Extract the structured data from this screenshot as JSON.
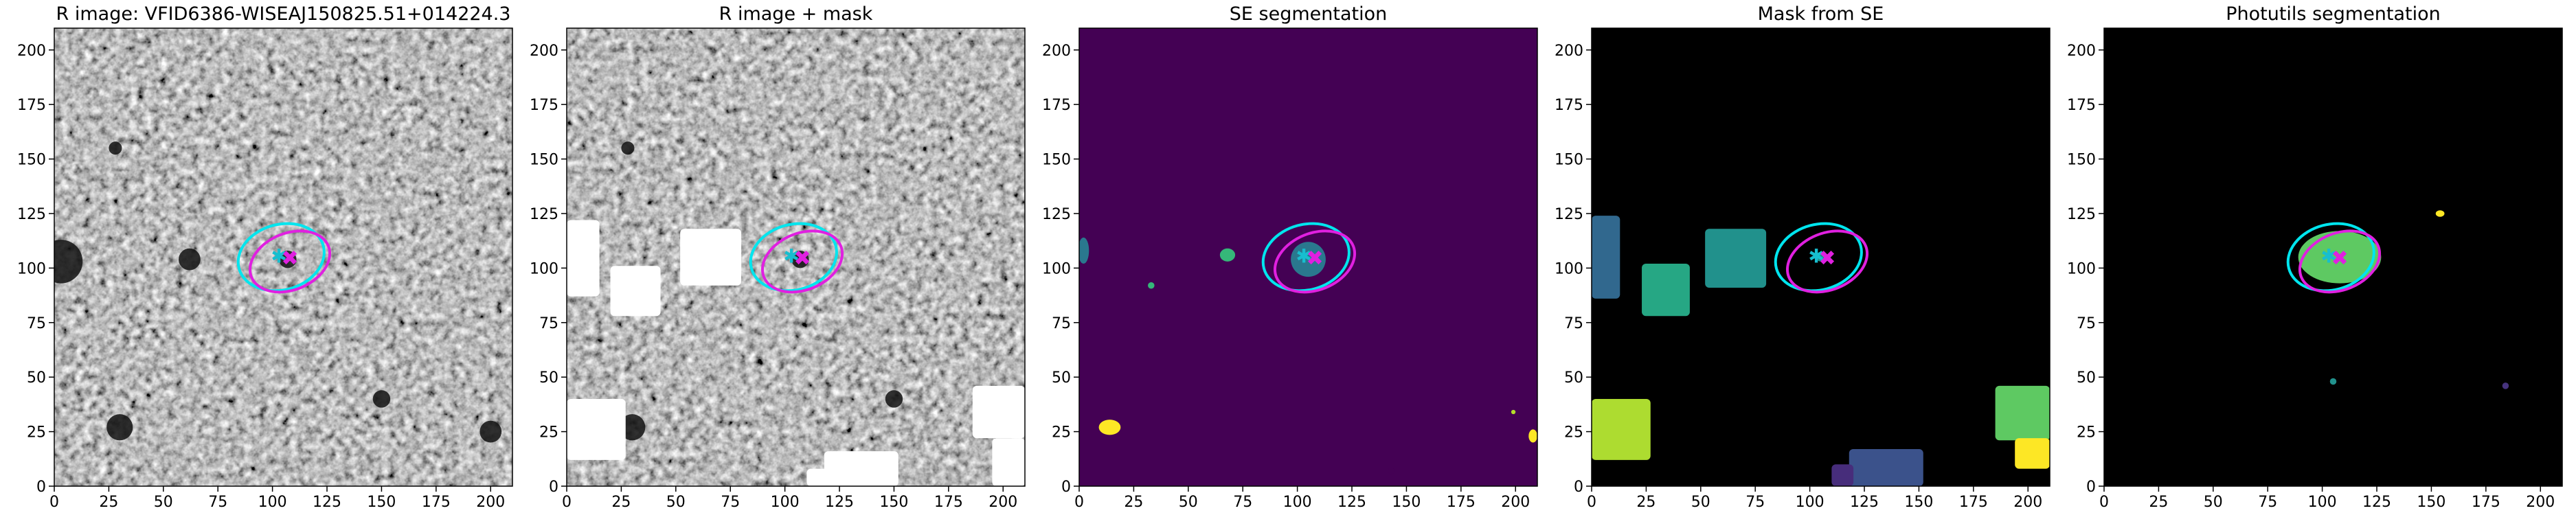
{
  "chart_data": [
    {
      "type": "image",
      "title": "R image: VFID6386-WISEAJ150825.51+014224.3",
      "cmap": "gray",
      "xlim": [
        0,
        210
      ],
      "ylim": [
        0,
        210
      ],
      "xticks": [
        0,
        25,
        50,
        75,
        100,
        125,
        150,
        175,
        200
      ],
      "yticks": [
        0,
        25,
        50,
        75,
        100,
        125,
        150,
        175,
        200
      ]
    },
    {
      "type": "image",
      "title": "R image + mask",
      "cmap": "gray",
      "xlim": [
        0,
        210
      ],
      "ylim": [
        0,
        210
      ],
      "xticks": [
        0,
        25,
        50,
        75,
        100,
        125,
        150,
        175,
        200
      ],
      "yticks": [
        0,
        25,
        50,
        75,
        100,
        125,
        150,
        175,
        200
      ]
    },
    {
      "type": "image",
      "title": "SE segmentation",
      "cmap": "viridis",
      "xlim": [
        0,
        210
      ],
      "ylim": [
        0,
        210
      ],
      "xticks": [
        0,
        25,
        50,
        75,
        100,
        125,
        150,
        175,
        200
      ],
      "yticks": [
        0,
        25,
        50,
        75,
        100,
        125,
        150,
        175,
        200
      ]
    },
    {
      "type": "image",
      "title": "Mask from SE",
      "cmap": "viridis",
      "xlim": [
        0,
        210
      ],
      "ylim": [
        0,
        210
      ],
      "xticks": [
        0,
        25,
        50,
        75,
        100,
        125,
        150,
        175,
        200
      ],
      "yticks": [
        0,
        25,
        50,
        75,
        100,
        125,
        150,
        175,
        200
      ]
    },
    {
      "type": "image",
      "title": "Photutils segmentation",
      "cmap": "viridis",
      "xlim": [
        0,
        210
      ],
      "ylim": [
        0,
        210
      ],
      "xticks": [
        0,
        25,
        50,
        75,
        100,
        125,
        150,
        175,
        200
      ],
      "yticks": [
        0,
        25,
        50,
        75,
        100,
        125,
        150,
        175,
        200
      ]
    }
  ]
}
